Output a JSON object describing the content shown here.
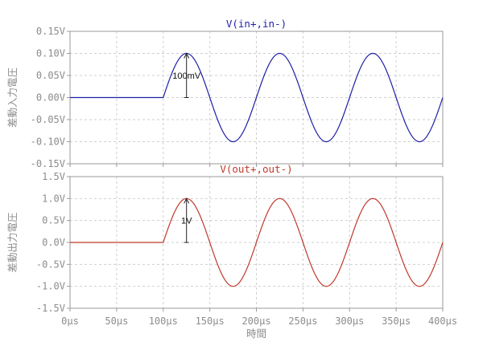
{
  "chart_data": [
    {
      "type": "line",
      "title": "V(in+,in-)",
      "ylabel": "差動入力電圧",
      "xlim": [
        0,
        400
      ],
      "ylim": [
        -0.15,
        0.15
      ],
      "x_ticks": [
        "0µs",
        "50µs",
        "100µs",
        "150µs",
        "200µs",
        "250µs",
        "300µs",
        "350µs",
        "400µs"
      ],
      "y_ticks": [
        "0.15V",
        "0.10V",
        "0.05V",
        "0.00V",
        "-0.05V",
        "-0.10V",
        "-0.15V"
      ],
      "grid": true,
      "series": [
        {
          "name": "V(in+,in-)",
          "color": "#1f1fa8",
          "signal": {
            "start": 100,
            "period": 100,
            "amplitude": 0.1,
            "end": 400
          }
        }
      ],
      "annotation": {
        "text": "100mV",
        "x": 125,
        "from": 0,
        "to": 0.1
      }
    },
    {
      "type": "line",
      "title": "V(out+,out-)",
      "ylabel": "差動出力電圧",
      "xlabel": "時間",
      "xlim": [
        0,
        400
      ],
      "ylim": [
        -1.5,
        1.5
      ],
      "x_ticks": [
        "0µs",
        "50µs",
        "100µs",
        "150µs",
        "200µs",
        "250µs",
        "300µs",
        "350µs",
        "400µs"
      ],
      "y_ticks": [
        "1.5V",
        "1.0V",
        "0.5V",
        "0.0V",
        "-0.5V",
        "-1.0V",
        "-1.5V"
      ],
      "grid": true,
      "series": [
        {
          "name": "V(out+,out-)",
          "color": "#c0392b",
          "signal": {
            "start": 100,
            "period": 100,
            "amplitude": 1.0,
            "end": 400
          }
        }
      ],
      "annotation": {
        "text": "1V",
        "x": 125,
        "from": 0,
        "to": 1.0
      }
    }
  ],
  "colors": {
    "frame": "#9a9a9a",
    "grid": "#cfcfcf",
    "text": "#8c8c8c"
  }
}
